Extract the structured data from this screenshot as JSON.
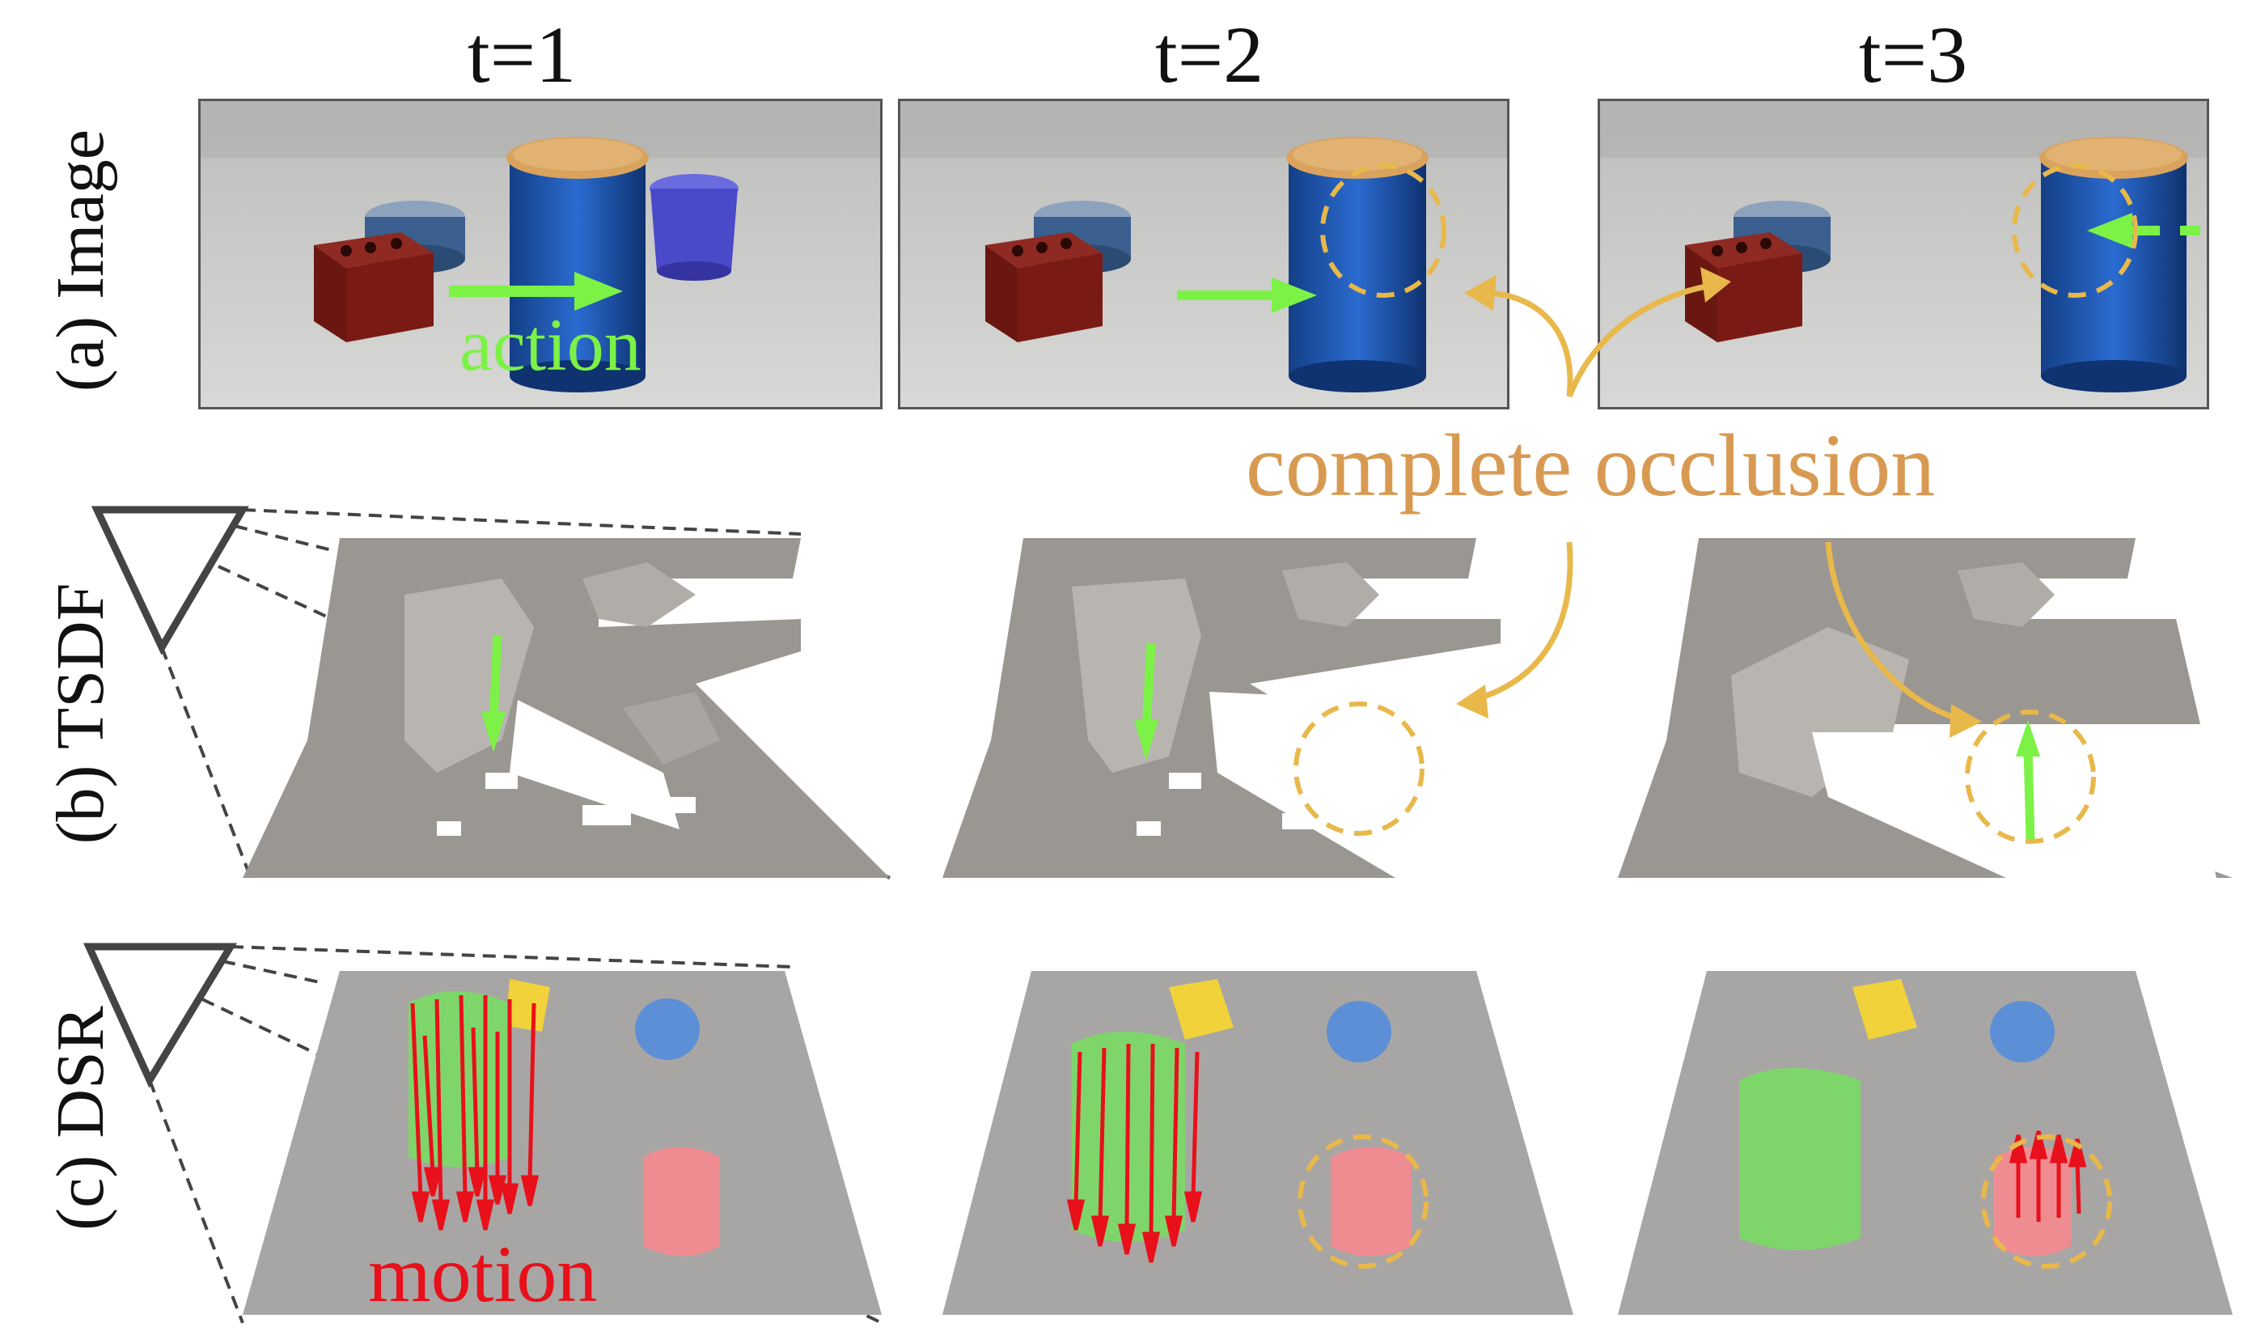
{
  "columns": [
    {
      "label": "t=1"
    },
    {
      "label": "t=2"
    },
    {
      "label": "t=3"
    }
  ],
  "rows": [
    {
      "label": "(a) Image"
    },
    {
      "label": "(b) TSDF"
    },
    {
      "label": "(c) DSR"
    }
  ],
  "annotations": {
    "action_label": "action",
    "occlusion_label": "complete occlusion",
    "motion_label": "motion"
  },
  "colors": {
    "action_green": "#7CF246",
    "occlusion_orange": "#E8B84A",
    "occlusion_text": "#D89A52",
    "motion_red": "#E8101A",
    "can_blue": "#1C5BB5",
    "can_lid": "#D9A35E",
    "brick_red": "#7A1A14",
    "bowl_purple": "#4A49C9",
    "tsdf_gray": "#8E8A86",
    "dsr_green": "#7ED66B",
    "dsr_yellow": "#F1D23A",
    "dsr_blue": "#5C8FD6",
    "dsr_pink": "#EE8C92"
  }
}
